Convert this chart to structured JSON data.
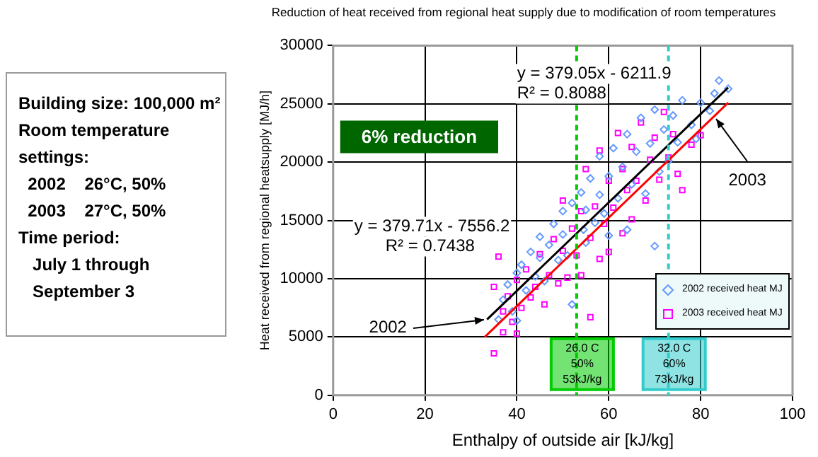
{
  "chart_data": {
    "type": "scatter",
    "title": "Reduction of heat received from regional heat supply due to modification of room temperatures",
    "xlabel": "Enthalpy of outside air [kJ/kg]",
    "ylabel": "Heat received from regional heatsupply [MJ/h]",
    "xlim": [
      0,
      100
    ],
    "xticks": [
      0,
      20,
      40,
      60,
      80,
      100
    ],
    "ylim": [
      0,
      30000
    ],
    "yticks": [
      0,
      5000,
      10000,
      15000,
      20000,
      25000,
      30000
    ],
    "grid": true,
    "legend": "bottom right",
    "series": [
      {
        "name": "2002 received heat MJ",
        "color": "#6699ff",
        "marker": "diamond",
        "x": [
          36,
          37,
          38,
          39,
          40,
          40,
          41,
          42,
          43,
          44,
          45,
          45,
          46,
          47,
          48,
          49,
          50,
          50,
          51,
          52,
          52,
          54.5,
          54,
          55,
          55,
          56,
          57,
          58,
          58,
          59,
          60,
          60,
          61,
          62,
          63,
          64,
          64,
          65,
          66,
          67,
          68,
          69,
          70,
          70,
          71,
          72,
          73,
          74,
          75,
          76,
          78,
          79,
          80,
          82,
          83,
          84,
          86
        ],
        "values": [
          6500,
          8200,
          9500,
          7200,
          6400,
          10500,
          11200,
          9000,
          12300,
          10200,
          11800,
          13600,
          9800,
          12900,
          14700,
          11600,
          13800,
          15800,
          12000,
          16500,
          7800,
          14200,
          17400,
          13100,
          15900,
          18600,
          14800,
          17200,
          20500,
          15600,
          18800,
          13700,
          21200,
          16900,
          19600,
          22400,
          14200,
          18100,
          20900,
          23800,
          17300,
          21600,
          24500,
          12800,
          19200,
          22800,
          20100,
          24000,
          21700,
          25300,
          23200,
          22000,
          25100,
          24400,
          25900,
          27000,
          26300
        ]
      },
      {
        "name": "2003 received heat MJ",
        "color": "#ff00ff",
        "marker": "square",
        "x": [
          35,
          35,
          36,
          37,
          37,
          38,
          39,
          40,
          40,
          41,
          42,
          43,
          44,
          45,
          46,
          47,
          48,
          49,
          50,
          50,
          51,
          52,
          53,
          54,
          54,
          55,
          56,
          56,
          57,
          58,
          58,
          59,
          60,
          60,
          61,
          62,
          63,
          63,
          64,
          65,
          65,
          66,
          67,
          68,
          69,
          70,
          71,
          72,
          73,
          74,
          75,
          76,
          78,
          80
        ],
        "values": [
          3600,
          9300,
          11900,
          7200,
          5400,
          8500,
          6300,
          5300,
          9900,
          7500,
          10800,
          8400,
          9300,
          12100,
          7800,
          10300,
          13400,
          9600,
          12400,
          16700,
          10100,
          14300,
          12000,
          15800,
          10300,
          19400,
          13500,
          6700,
          16200,
          11700,
          21000,
          14700,
          18400,
          12300,
          16100,
          22500,
          13900,
          19400,
          17600,
          21300,
          15100,
          18400,
          23400,
          16700,
          20200,
          22100,
          18500,
          24300,
          20400,
          22400,
          19000,
          17600,
          21500,
          22300
        ]
      },
      {
        "type": "line",
        "color": "#000000",
        "marker": "none",
        "x": [
          33.5,
          86
        ],
        "values": [
          6500,
          26400
        ]
      },
      {
        "type": "line",
        "color": "#ff0000",
        "marker": "none",
        "x": [
          33,
          86
        ],
        "values": [
          5000,
          25100
        ]
      }
    ],
    "ref_lines": [
      {
        "axis": "x",
        "value": 53,
        "label": "26.0 C\n50%\n53kJ/kg",
        "color": "#00cc00",
        "line_style": "dashed"
      },
      {
        "axis": "x",
        "value": 73,
        "label": "32.0 C\n60%\n73kJ/kg",
        "color": "#33cccc",
        "line_style": "dashed"
      }
    ],
    "annotations": [
      "y = 379.05x - 6211.9\nR² = 0.8088",
      "y = 379.71x - 7556.2\nR² = 0.7438",
      "6% reduction",
      {
        "text": "2002",
        "x": 33.5,
        "y": 6500
      },
      {
        "text": "2003",
        "x": 84,
        "y": 24000
      },
      "Building size: 100,000 m²\nRoom temperature settings:\n  2002    26°C, 50%\n  2003    27°C, 50%\nTime period:\n   July 1 through\n   September 3"
    ]
  }
}
